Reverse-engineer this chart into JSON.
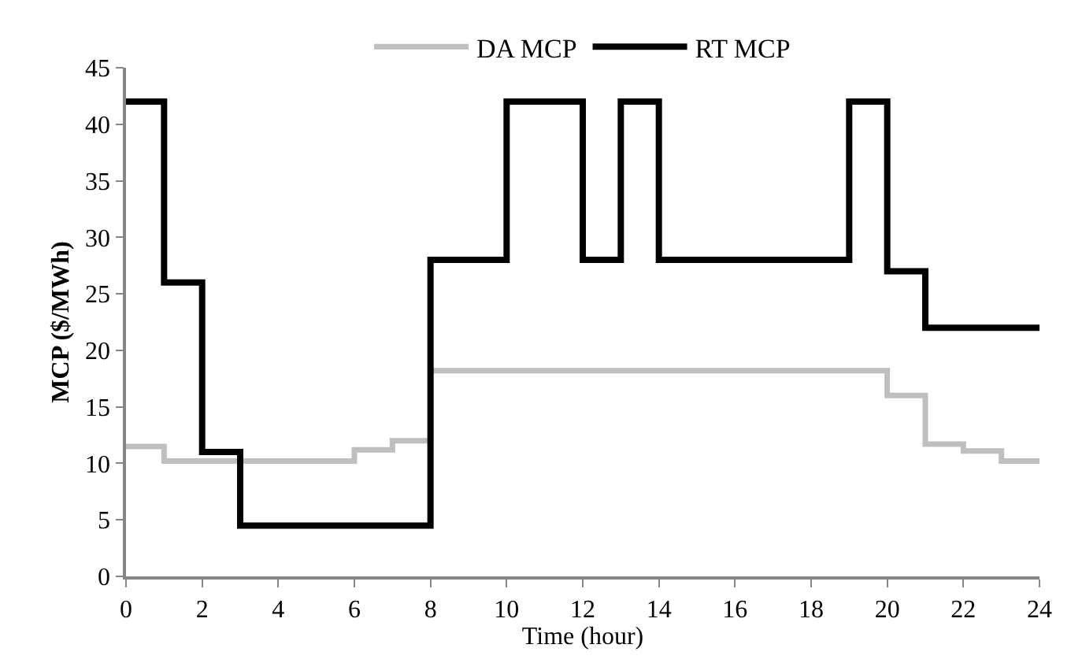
{
  "chart_data": {
    "type": "step",
    "xlabel": "Time (hour)",
    "ylabel": "MCP ($/MWh)",
    "x": [
      0,
      1,
      2,
      3,
      4,
      5,
      6,
      7,
      8,
      9,
      10,
      11,
      12,
      13,
      14,
      15,
      16,
      17,
      18,
      19,
      20,
      21,
      22,
      23,
      24
    ],
    "series": [
      {
        "name": "DA MCP",
        "color": "#bfbfbf",
        "values": [
          11.5,
          10.2,
          10.2,
          10.2,
          10.2,
          10.2,
          11.2,
          12,
          18.2,
          18.2,
          18.2,
          18.2,
          18.2,
          18.2,
          18.2,
          18.2,
          18.2,
          18.2,
          18.2,
          18.2,
          16,
          11.7,
          11.1,
          10.2,
          10.2
        ]
      },
      {
        "name": "RT MCP",
        "color": "#000000",
        "values": [
          42,
          26,
          11,
          4.5,
          4.5,
          4.5,
          4.5,
          4.5,
          28,
          28,
          42,
          42,
          28,
          42,
          28,
          28,
          28,
          28,
          28,
          42,
          27,
          22,
          22,
          22,
          22
        ]
      }
    ],
    "xlim": [
      0,
      24
    ],
    "xticks": [
      0,
      2,
      4,
      6,
      8,
      10,
      12,
      14,
      16,
      18,
      20,
      22,
      24
    ],
    "ylim": [
      0,
      45
    ],
    "yticks": [
      0,
      5,
      10,
      15,
      20,
      25,
      30,
      35,
      40,
      45
    ],
    "legend": "top",
    "marker": "none",
    "line_style": "solid"
  }
}
